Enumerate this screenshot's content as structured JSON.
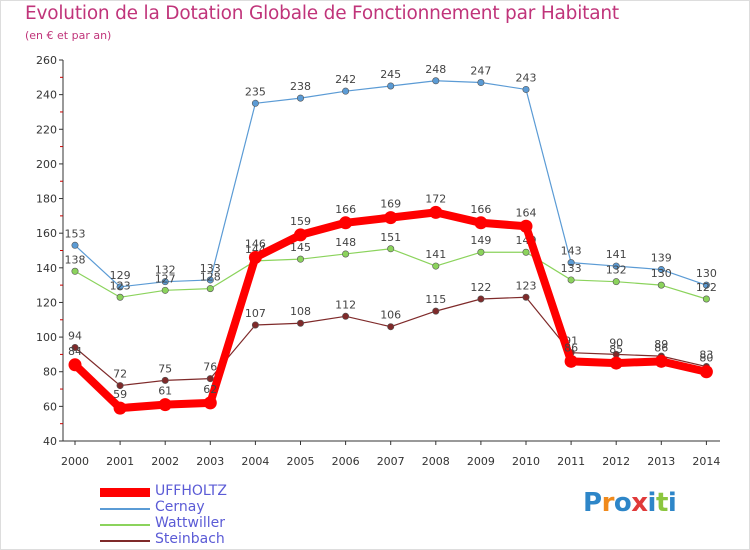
{
  "title": "Evolution de la Dotation Globale de Fonctionnement par Habitant",
  "subtitle": "(en € et par an)",
  "logo": {
    "text": "Proxiti",
    "letters": [
      {
        "ch": "P",
        "color": "#2e86c8"
      },
      {
        "ch": "r",
        "color": "#f08a1c"
      },
      {
        "ch": "o",
        "color": "#2e86c8"
      },
      {
        "ch": "x",
        "color": "#e03a3a"
      },
      {
        "ch": "i",
        "color": "#2e86c8"
      },
      {
        "ch": "t",
        "color": "#8cc63f"
      },
      {
        "ch": "i",
        "color": "#2e86c8"
      }
    ]
  },
  "chart_data": {
    "type": "line",
    "title": "Evolution de la Dotation Globale de Fonctionnement par Habitant",
    "subtitle": "(en € et par an)",
    "x": [
      "2000",
      "2001",
      "2002",
      "2003",
      "2004",
      "2005",
      "2006",
      "2007",
      "2008",
      "2009",
      "2010",
      "2011",
      "2012",
      "2013",
      "2014"
    ],
    "ylim": [
      40,
      260
    ],
    "yticks": [
      40,
      60,
      80,
      100,
      120,
      140,
      160,
      180,
      200,
      220,
      240,
      260
    ],
    "grid": false,
    "legend_position": "bottom-left",
    "series": [
      {
        "name": "UFFHOLTZ",
        "color": "#ff0000",
        "emphasis": true,
        "values": [
          84,
          59,
          61,
          62,
          146,
          159,
          166,
          169,
          172,
          166,
          164,
          86,
          85,
          86,
          80
        ]
      },
      {
        "name": "Cernay",
        "color": "#5b9bd5",
        "values": [
          153,
          129,
          132,
          133,
          235,
          238,
          242,
          245,
          248,
          247,
          243,
          143,
          141,
          139,
          130
        ]
      },
      {
        "name": "Wattwiller",
        "color": "#8bd35c",
        "values": [
          138,
          123,
          127,
          128,
          144,
          145,
          148,
          151,
          141,
          149,
          149,
          133,
          132,
          130,
          122
        ]
      },
      {
        "name": "Steinbach",
        "color": "#7f2a2a",
        "values": [
          94,
          72,
          75,
          76,
          107,
          108,
          112,
          106,
          115,
          122,
          123,
          91,
          90,
          89,
          83
        ]
      }
    ]
  }
}
